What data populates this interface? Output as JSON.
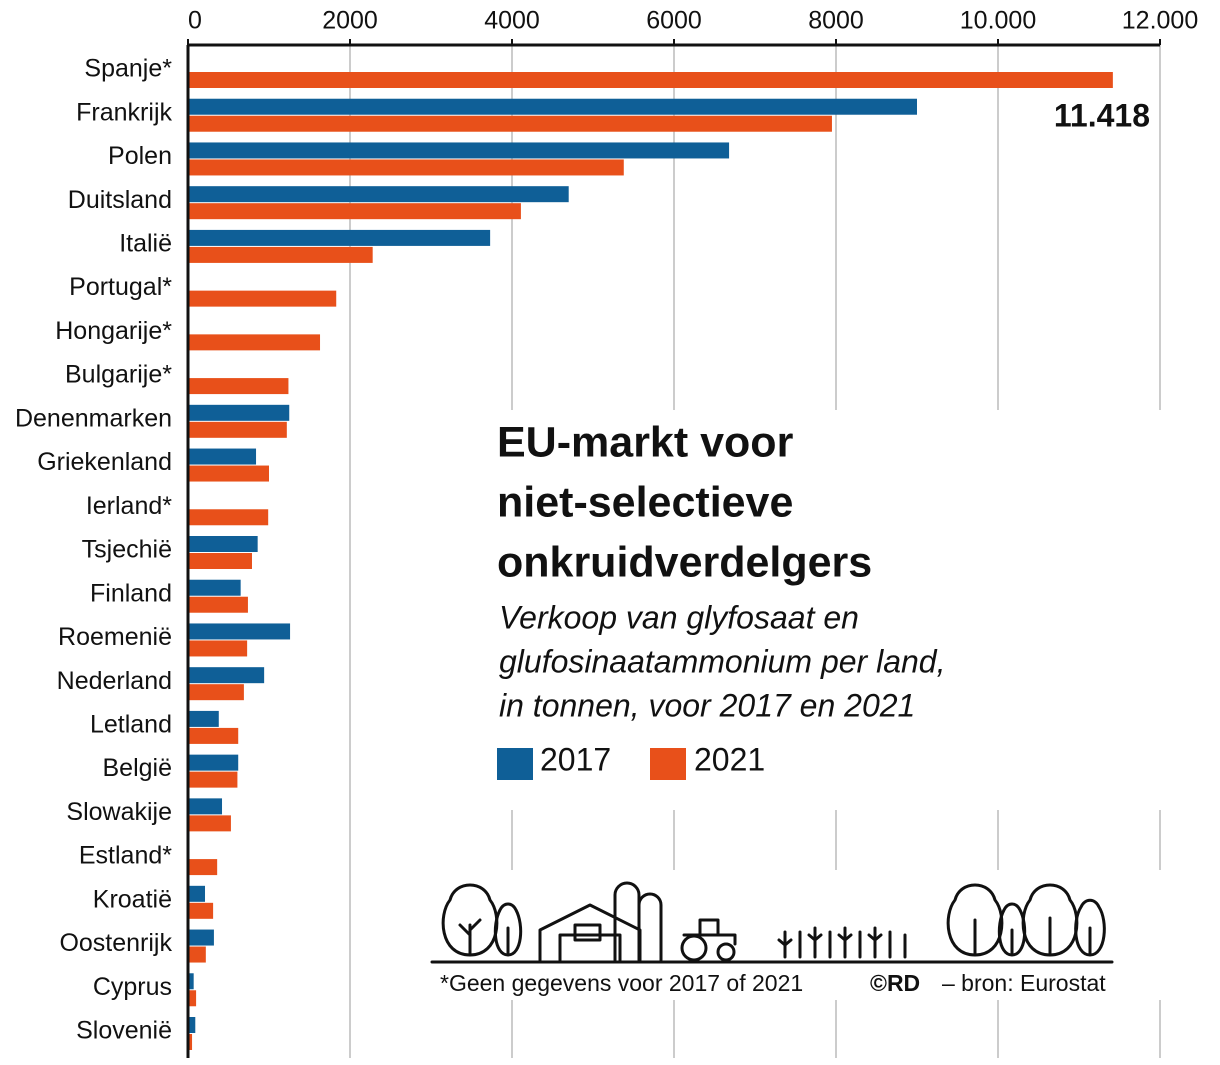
{
  "chart_data": {
    "type": "hbar",
    "title": [
      "EU-markt voor",
      "niet-selectieve",
      "onkruidverdelgers"
    ],
    "subtitle": [
      "Verkoop van glyfosaat en",
      "glufosinaatammonium per land,",
      "in tonnen, voor 2017 en 2021"
    ],
    "footnote": "*Geen gegevens voor 2017 of 2021",
    "credit": "©RD",
    "source": "– bron: Eurostat",
    "categories": [
      "Spanje*",
      "Frankrijk",
      "Polen",
      "Duitsland",
      "Italië",
      "Portugal*",
      "Hongarije*",
      "Bulgarije*",
      "Denenmarken",
      "Griekenland",
      "Ierland*",
      "Tsjechië",
      "Finland",
      "Roemenië",
      "Nederland",
      "Letland",
      "België",
      "Slowakije",
      "Estland*",
      "Kroatië",
      "Oostenrijk",
      "Cyprus",
      "Slovenië"
    ],
    "series": [
      {
        "name": "2017",
        "color": "#0f5f97",
        "values": [
          null,
          9000,
          6680,
          4700,
          3730,
          null,
          null,
          null,
          1250,
          840,
          null,
          860,
          650,
          1260,
          940,
          380,
          620,
          420,
          null,
          210,
          320,
          70,
          90
        ]
      },
      {
        "name": "2021",
        "color": "#e8501a",
        "values": [
          11418,
          7950,
          5380,
          4110,
          2280,
          1830,
          1630,
          1240,
          1220,
          1000,
          990,
          790,
          740,
          730,
          690,
          620,
          610,
          530,
          360,
          310,
          220,
          100,
          50
        ],
        "value_labels": [
          "11.418",
          null,
          null,
          null,
          null,
          null,
          null,
          null,
          null,
          null,
          null,
          null,
          null,
          null,
          null,
          null,
          null,
          null,
          null,
          null,
          null,
          null,
          null
        ]
      }
    ],
    "xlim": [
      0,
      12000
    ],
    "xticks": [
      0,
      2000,
      4000,
      6000,
      8000,
      {
        "value": 10000,
        "label": "10.000"
      },
      {
        "value": 12000,
        "label": "12.000"
      }
    ],
    "grid": true
  }
}
